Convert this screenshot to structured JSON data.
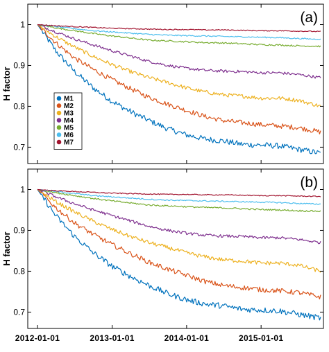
{
  "chart_data": [
    {
      "type": "line",
      "panel_label": "(a)",
      "ylabel": "H factor",
      "xlabel": "",
      "xlim": [
        "2012-01-01",
        "2015-10-20"
      ],
      "ylim": [
        0.66,
        1.05
      ],
      "x_ticks": [
        "2012-01-01",
        "2013-01-01",
        "2014-01-01",
        "2015-01-01"
      ],
      "y_ticks": [
        0.7,
        0.8,
        0.9,
        1
      ],
      "y_tick_labels": [
        "0.7",
        "0.8",
        "0.9",
        "1"
      ],
      "legend_position": "left-middle",
      "x": [
        "2012-01-01",
        "2012-04-01",
        "2012-07-01",
        "2012-10-01",
        "2013-01-01",
        "2013-04-01",
        "2013-07-01",
        "2013-10-01",
        "2014-01-01",
        "2014-04-01",
        "2014-07-01",
        "2014-10-01",
        "2015-01-01",
        "2015-04-01",
        "2015-07-01",
        "2015-10-20"
      ],
      "series": [
        {
          "name": "M1",
          "color": "#0072BD",
          "values": [
            1.0,
            0.935,
            0.885,
            0.845,
            0.812,
            0.787,
            0.765,
            0.745,
            0.73,
            0.72,
            0.715,
            0.707,
            0.705,
            0.703,
            0.695,
            0.685
          ]
        },
        {
          "name": "M2",
          "color": "#D95319",
          "values": [
            1.0,
            0.955,
            0.918,
            0.89,
            0.865,
            0.843,
            0.822,
            0.805,
            0.79,
            0.775,
            0.765,
            0.76,
            0.755,
            0.752,
            0.748,
            0.737
          ]
        },
        {
          "name": "M3",
          "color": "#EDB120",
          "values": [
            1.0,
            0.97,
            0.945,
            0.922,
            0.902,
            0.885,
            0.87,
            0.858,
            0.845,
            0.835,
            0.828,
            0.825,
            0.82,
            0.82,
            0.815,
            0.8
          ]
        },
        {
          "name": "M4",
          "color": "#7E2F8E",
          "values": [
            1.0,
            0.982,
            0.965,
            0.95,
            0.936,
            0.923,
            0.91,
            0.9,
            0.893,
            0.888,
            0.886,
            0.885,
            0.882,
            0.882,
            0.878,
            0.87
          ]
        },
        {
          "name": "M5",
          "color": "#77AC30",
          "values": [
            1.0,
            0.992,
            0.985,
            0.978,
            0.972,
            0.967,
            0.962,
            0.96,
            0.958,
            0.956,
            0.955,
            0.953,
            0.951,
            0.95,
            0.948,
            0.947
          ]
        },
        {
          "name": "M6",
          "color": "#4DBEEE",
          "values": [
            1.0,
            0.995,
            0.99,
            0.985,
            0.982,
            0.979,
            0.976,
            0.974,
            0.973,
            0.972,
            0.971,
            0.97,
            0.969,
            0.968,
            0.966,
            0.964
          ]
        },
        {
          "name": "M7",
          "color": "#A2142F",
          "values": [
            1.0,
            0.997,
            0.995,
            0.993,
            0.991,
            0.99,
            0.989,
            0.988,
            0.988,
            0.987,
            0.987,
            0.986,
            0.985,
            0.985,
            0.984,
            0.983
          ]
        }
      ]
    },
    {
      "type": "line",
      "panel_label": "(b)",
      "ylabel": "H factor",
      "xlabel": "",
      "xlim": [
        "2012-01-01",
        "2015-10-20"
      ],
      "ylim": [
        0.66,
        1.05
      ],
      "x_ticks": [
        "2012-01-01",
        "2013-01-01",
        "2014-01-01",
        "2015-01-01"
      ],
      "y_ticks": [
        0.7,
        0.8,
        0.9,
        1
      ],
      "y_tick_labels": [
        "0.7",
        "0.8",
        "0.9",
        "1"
      ],
      "x": [
        "2012-01-01",
        "2012-04-01",
        "2012-07-01",
        "2012-10-01",
        "2013-01-01",
        "2013-04-01",
        "2013-07-01",
        "2013-10-01",
        "2014-01-01",
        "2014-04-01",
        "2014-07-01",
        "2014-10-01",
        "2015-01-01",
        "2015-04-01",
        "2015-07-01",
        "2015-10-20"
      ],
      "series": [
        {
          "color": "#0072BD",
          "values": [
            1.0,
            0.935,
            0.885,
            0.845,
            0.812,
            0.787,
            0.765,
            0.745,
            0.73,
            0.72,
            0.715,
            0.707,
            0.705,
            0.703,
            0.695,
            0.685
          ]
        },
        {
          "color": "#D95319",
          "values": [
            1.0,
            0.955,
            0.918,
            0.89,
            0.865,
            0.843,
            0.822,
            0.805,
            0.79,
            0.775,
            0.765,
            0.76,
            0.755,
            0.752,
            0.748,
            0.737
          ]
        },
        {
          "color": "#EDB120",
          "values": [
            1.0,
            0.97,
            0.945,
            0.922,
            0.902,
            0.885,
            0.87,
            0.858,
            0.845,
            0.835,
            0.828,
            0.825,
            0.82,
            0.82,
            0.815,
            0.8
          ]
        },
        {
          "color": "#7E2F8E",
          "values": [
            1.0,
            0.982,
            0.965,
            0.95,
            0.936,
            0.923,
            0.91,
            0.9,
            0.893,
            0.888,
            0.886,
            0.885,
            0.882,
            0.882,
            0.878,
            0.87
          ]
        },
        {
          "color": "#77AC30",
          "values": [
            1.0,
            0.992,
            0.985,
            0.978,
            0.972,
            0.967,
            0.962,
            0.96,
            0.958,
            0.956,
            0.955,
            0.953,
            0.951,
            0.95,
            0.948,
            0.947
          ]
        },
        {
          "color": "#4DBEEE",
          "values": [
            1.0,
            0.995,
            0.99,
            0.985,
            0.982,
            0.979,
            0.976,
            0.974,
            0.973,
            0.972,
            0.971,
            0.97,
            0.969,
            0.968,
            0.966,
            0.964
          ]
        },
        {
          "color": "#A2142F",
          "values": [
            1.0,
            0.997,
            0.995,
            0.993,
            0.991,
            0.99,
            0.989,
            0.988,
            0.988,
            0.987,
            0.987,
            0.986,
            0.985,
            0.985,
            0.984,
            0.983
          ]
        }
      ]
    }
  ]
}
